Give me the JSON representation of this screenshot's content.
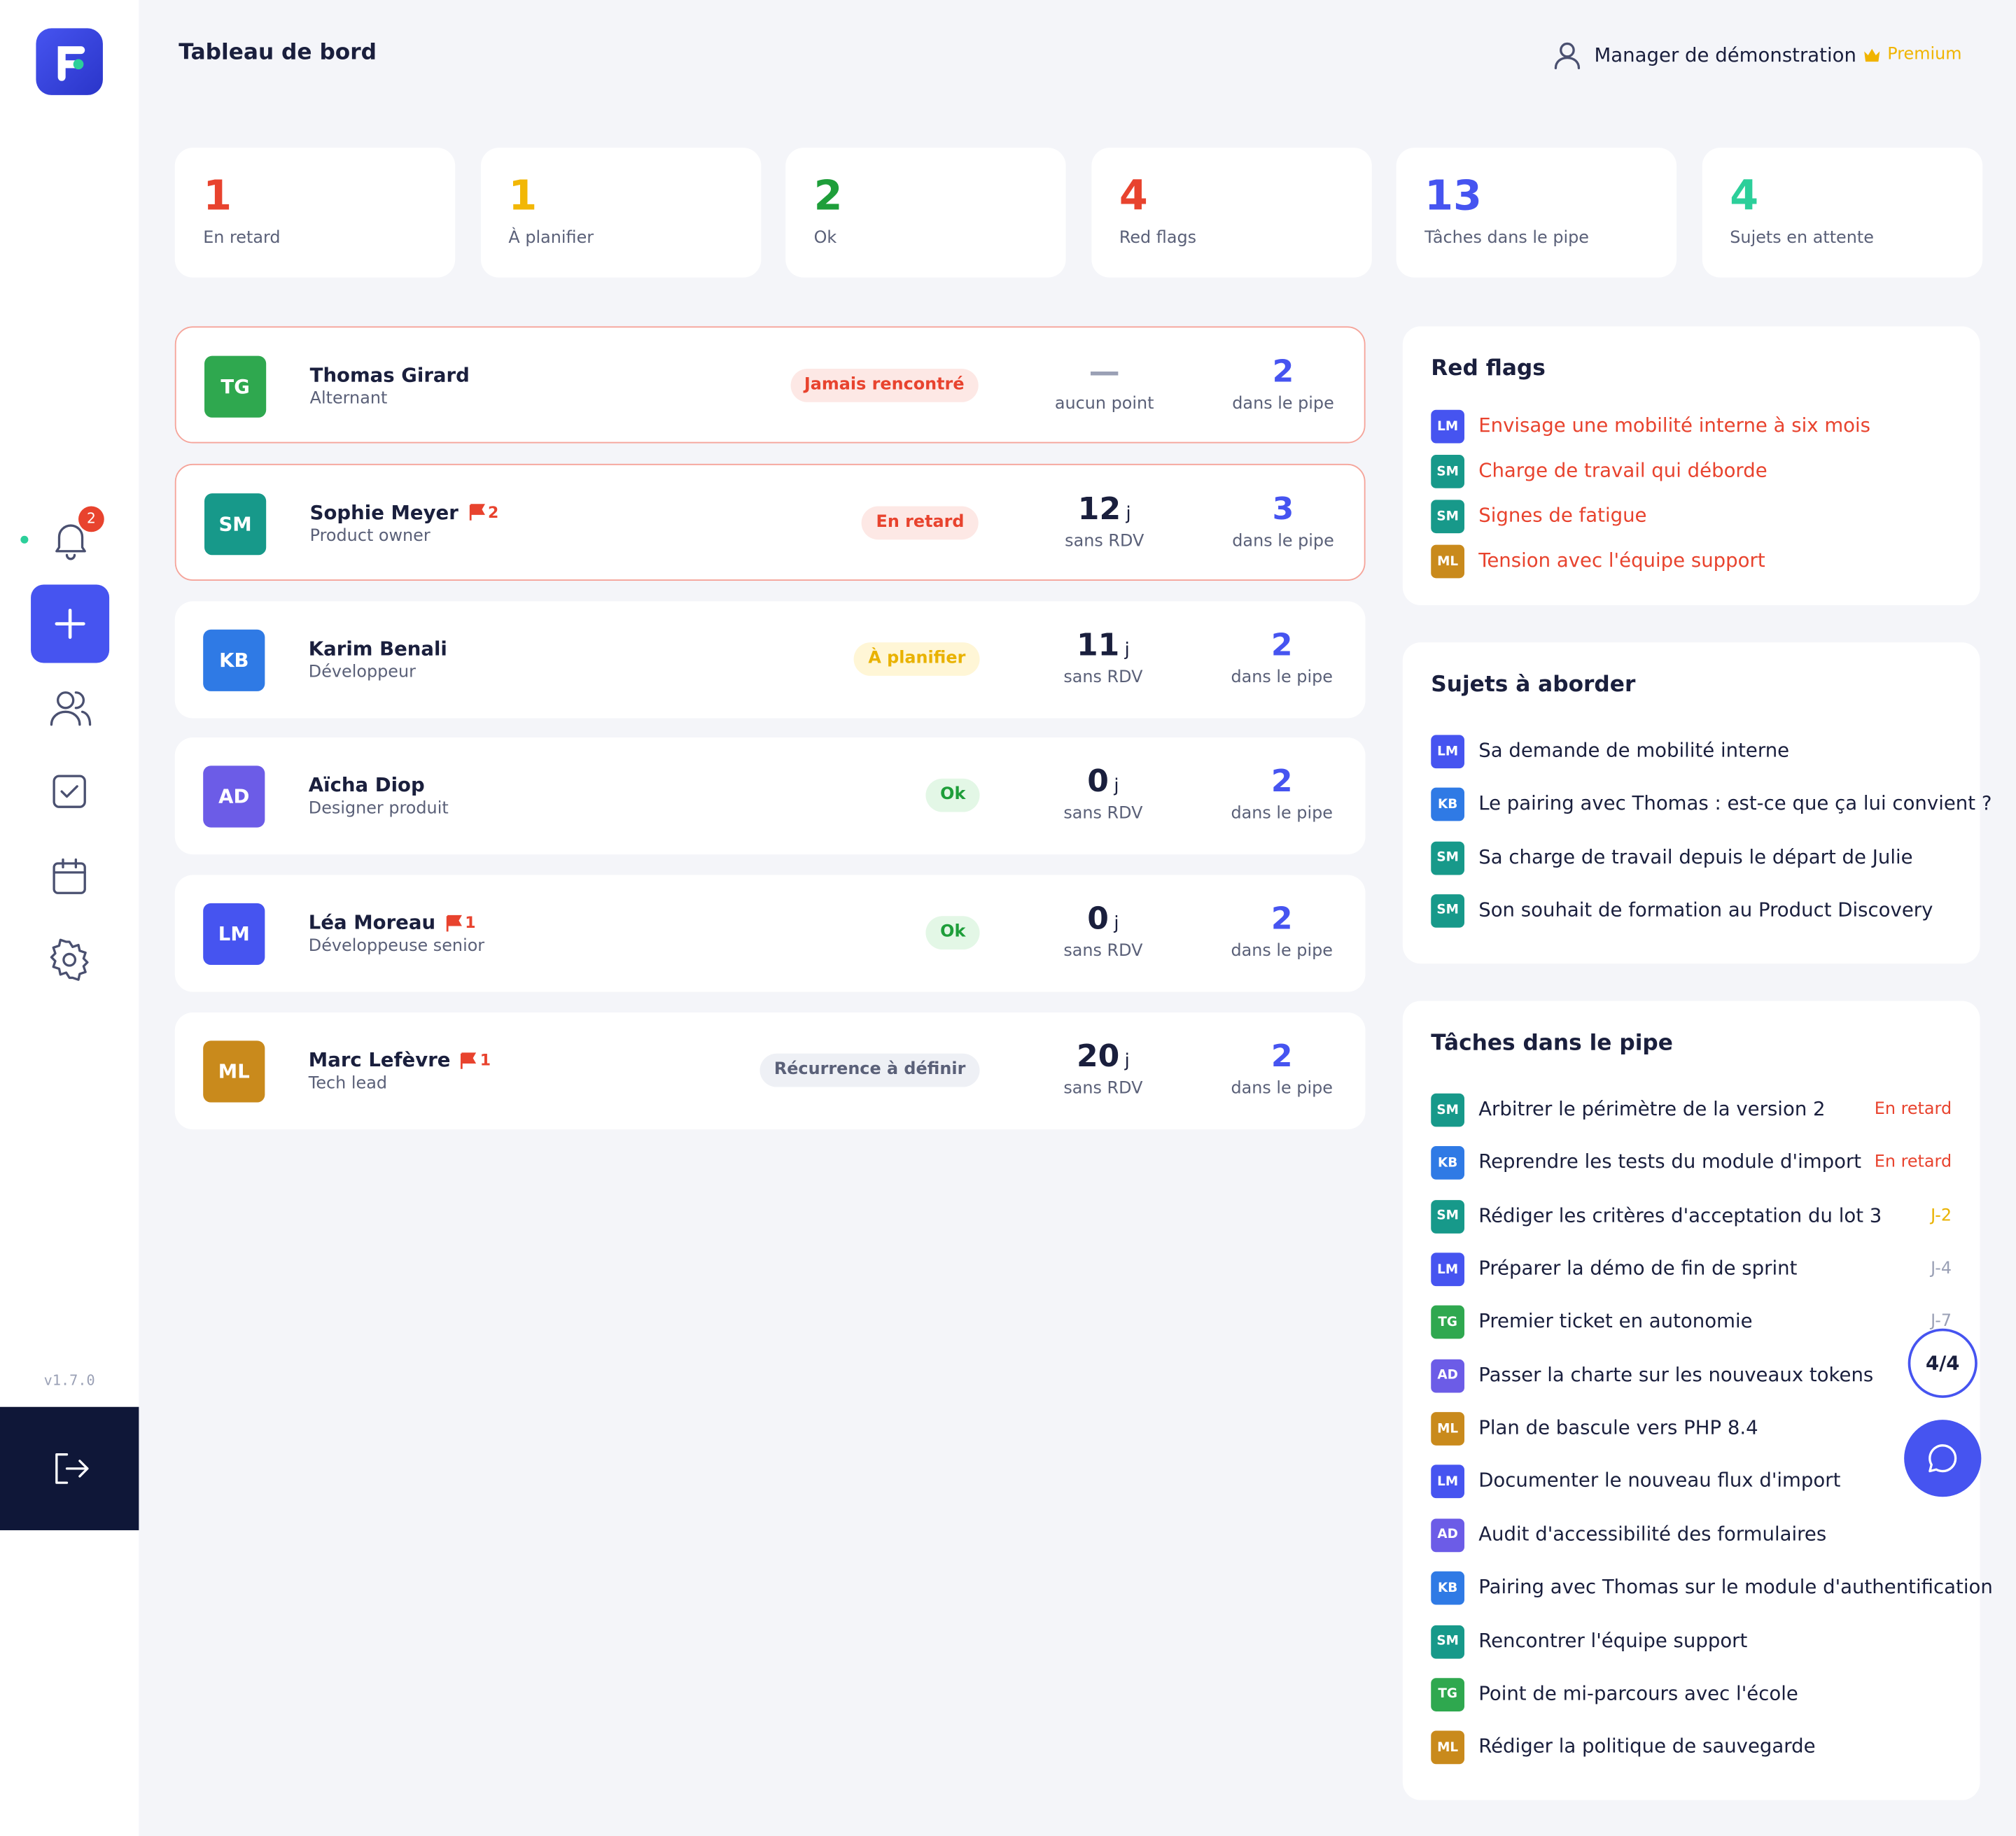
{
  "header": {
    "title": "Tableau de bord",
    "user": "Manager de démonstration",
    "plan": "Premium"
  },
  "sidebar": {
    "notifications": "2",
    "version": "v1.7.0"
  },
  "stats": [
    {
      "value": 1,
      "label": "En retard",
      "color": "#e8432e"
    },
    {
      "value": 1,
      "label": "À planifier",
      "color": "#f2b705"
    },
    {
      "value": 2,
      "label": "Ok",
      "color": "#1e9e3a"
    },
    {
      "value": 4,
      "label": "Red flags",
      "color": "#e8432e"
    },
    {
      "value": 13,
      "label": "Tâches dans le pipe",
      "color": "#4654f0"
    },
    {
      "value": 4,
      "label": "Sujets en attente",
      "color": "#2ccf9a"
    }
  ],
  "people": [
    {
      "initials": "TG",
      "name": "Thomas Girard",
      "role": "Alternant",
      "flags": null,
      "status": "Jamais rencontré",
      "status_tone": "red",
      "alert": true,
      "days": "—",
      "days_unit": null,
      "days_label": "aucun point",
      "pipe": 2,
      "pipe_label": "dans le pipe",
      "color": "#2fa84f"
    },
    {
      "initials": "SM",
      "name": "Sophie Meyer",
      "role": "Product owner",
      "flags": 2,
      "status": "En retard",
      "status_tone": "red",
      "alert": true,
      "days": 12,
      "days_unit": "j",
      "days_label": "sans RDV",
      "pipe": 3,
      "pipe_label": "dans le pipe",
      "color": "#17998a"
    },
    {
      "initials": "KB",
      "name": "Karim Benali",
      "role": "Développeur",
      "flags": null,
      "status": "À planifier",
      "status_tone": "yellow",
      "alert": false,
      "days": 11,
      "days_unit": "j",
      "days_label": "sans RDV",
      "pipe": 2,
      "pipe_label": "dans le pipe",
      "color": "#2f7ae5"
    },
    {
      "initials": "AD",
      "name": "Aïcha Diop",
      "role": "Designer produit",
      "flags": null,
      "status": "Ok",
      "status_tone": "green",
      "alert": false,
      "days": 0,
      "days_unit": "j",
      "days_label": "sans RDV",
      "pipe": 2,
      "pipe_label": "dans le pipe",
      "color": "#6c5ce7"
    },
    {
      "initials": "LM",
      "name": "Léa Moreau",
      "role": "Développeuse senior",
      "flags": 1,
      "status": "Ok",
      "status_tone": "green",
      "alert": false,
      "days": 0,
      "days_unit": "j",
      "days_label": "sans RDV",
      "pipe": 2,
      "pipe_label": "dans le pipe",
      "color": "#4654f0"
    },
    {
      "initials": "ML",
      "name": "Marc Lefèvre",
      "role": "Tech lead",
      "flags": 1,
      "status": "Récurrence à définir",
      "status_tone": "grey",
      "alert": false,
      "days": 20,
      "days_unit": "j",
      "days_label": "sans RDV",
      "pipe": 2,
      "pipe_label": "dans le pipe",
      "color": "#c98a1c"
    }
  ],
  "red_flags": {
    "title": "Red flags",
    "items": [
      {
        "initials": "LM",
        "text": "Envisage une mobilité interne à six mois"
      },
      {
        "initials": "SM",
        "text": "Charge de travail qui déborde"
      },
      {
        "initials": "SM",
        "text": "Signes de fatigue"
      },
      {
        "initials": "ML",
        "text": "Tension avec l'équipe support"
      }
    ]
  },
  "topics": {
    "title": "Sujets à aborder",
    "items": [
      {
        "initials": "LM",
        "text": "Sa demande de mobilité interne"
      },
      {
        "initials": "KB",
        "text": "Le pairing avec Thomas : est-ce que ça lui convient ?"
      },
      {
        "initials": "SM",
        "text": "Sa charge de travail depuis le départ de Julie"
      },
      {
        "initials": "SM",
        "text": "Son souhait de formation au Product Discovery"
      }
    ]
  },
  "tasks": {
    "title": "Tâches dans le pipe",
    "items": [
      {
        "initials": "SM",
        "text": "Arbitrer le périmètre de la version 2",
        "due": "En retard",
        "due_tone": "red"
      },
      {
        "initials": "KB",
        "text": "Reprendre les tests du module d'import",
        "due": "En retard",
        "due_tone": "red"
      },
      {
        "initials": "SM",
        "text": "Rédiger les critères d'acceptation du lot 3",
        "due": "J-2",
        "due_tone": "yellow"
      },
      {
        "initials": "LM",
        "text": "Préparer la démo de fin de sprint",
        "due": "J-4",
        "due_tone": "grey"
      },
      {
        "initials": "TG",
        "text": "Premier ticket en autonomie",
        "due": "J-7",
        "due_tone": "grey"
      },
      {
        "initials": "AD",
        "text": "Passer la charte sur les nouveaux tokens",
        "due": null,
        "due_tone": "grey"
      },
      {
        "initials": "ML",
        "text": "Plan de bascule vers PHP 8.4",
        "due": null,
        "due_tone": "grey"
      },
      {
        "initials": "LM",
        "text": "Documenter le nouveau flux d'import",
        "due": null,
        "due_tone": "grey"
      },
      {
        "initials": "AD",
        "text": "Audit d'accessibilité des formulaires",
        "due": null,
        "due_tone": "grey"
      },
      {
        "initials": "KB",
        "text": "Pairing avec Thomas sur le module d'authentification",
        "due": null,
        "due_tone": "grey"
      },
      {
        "initials": "SM",
        "text": "Rencontrer l'équipe support",
        "due": null,
        "due_tone": "grey"
      },
      {
        "initials": "TG",
        "text": "Point de mi-parcours avec l'école",
        "due": null,
        "due_tone": "grey"
      },
      {
        "initials": "ML",
        "text": "Rédiger la politique de sauvegarde",
        "due": null,
        "due_tone": "grey"
      }
    ]
  },
  "pager": "4/4"
}
